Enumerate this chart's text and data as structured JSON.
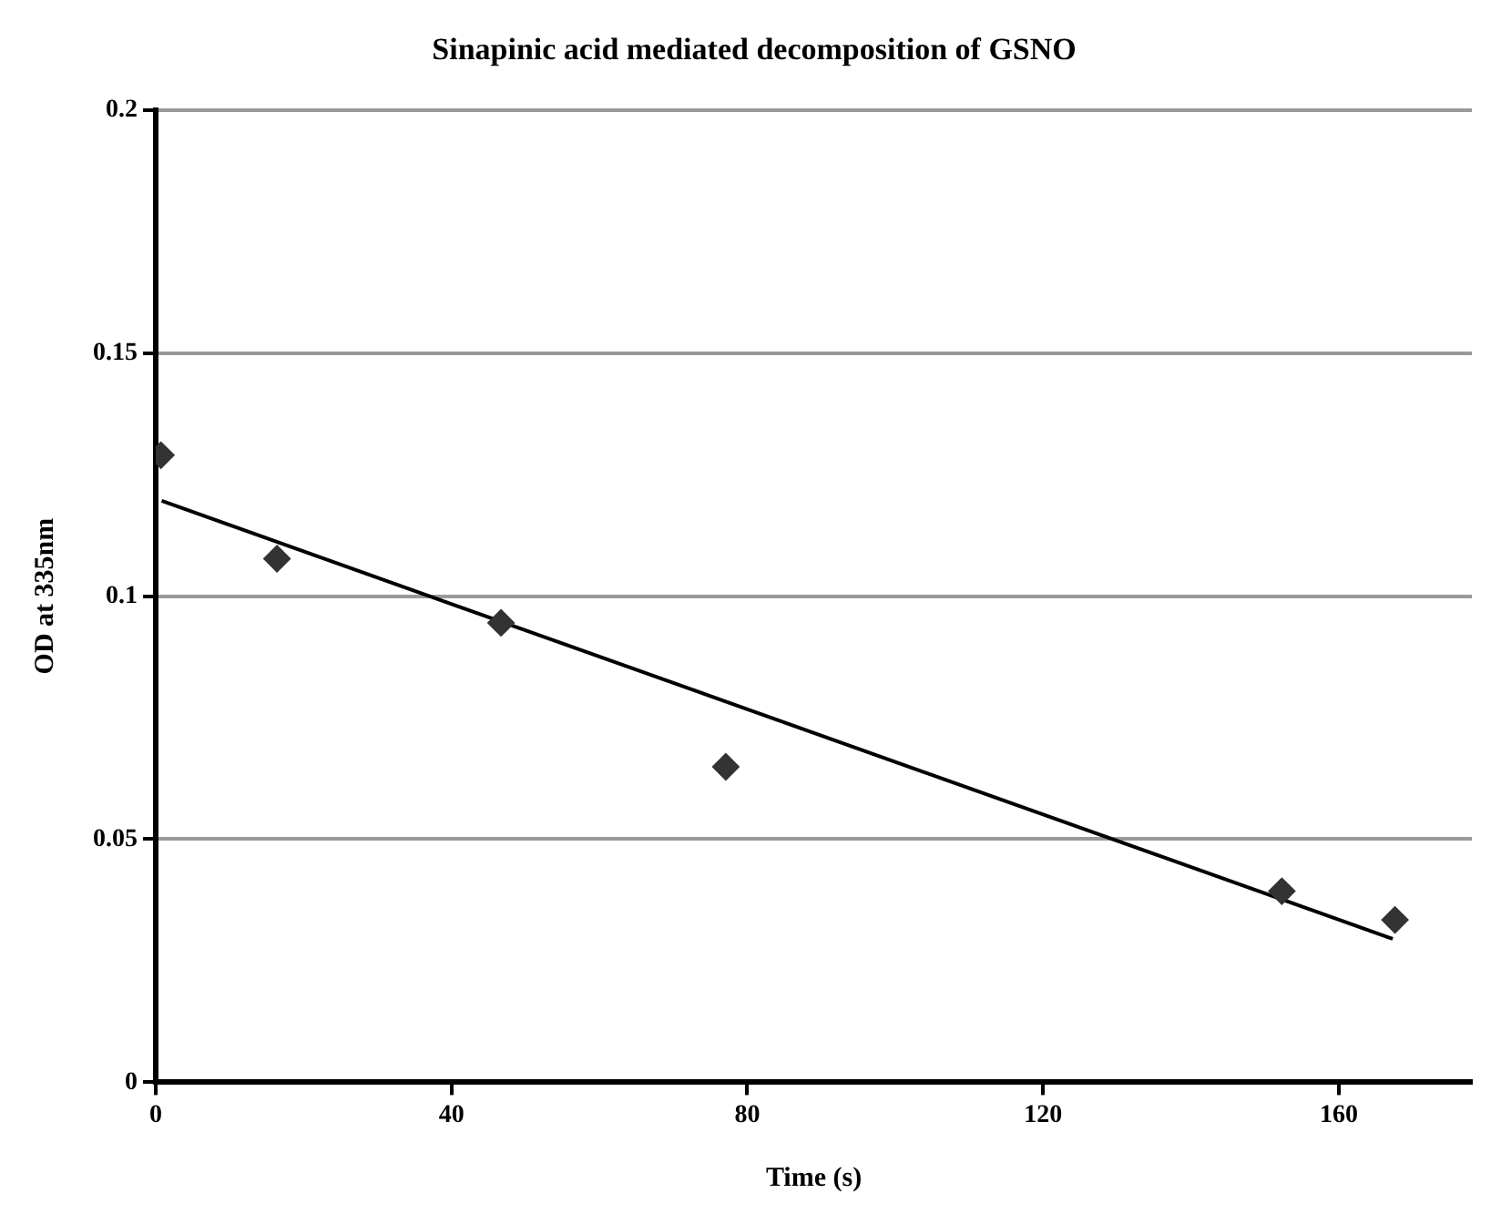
{
  "chart_data": {
    "type": "scatter",
    "title": "Sinapinic acid mediated decomposition of GSNO",
    "xlabel": "Time (s)",
    "ylabel": "OD at 335nm",
    "x": [
      0.7,
      16.4,
      46.7,
      77.1,
      152.3,
      167.6
    ],
    "series": [
      {
        "color": "#333333",
        "marker": "diamond",
        "values": [
          0.129,
          0.1077,
          0.0945,
          0.0649,
          0.0393,
          0.0334
        ]
      },
      {
        "type": "line",
        "color": "#000000",
        "marker": "none",
        "line_style": "solid",
        "x": [
          0.8,
          167.3
        ],
        "values": [
          0.1196,
          0.0295
        ]
      }
    ],
    "xlim": [
      0,
      178
    ],
    "xticks": [
      0,
      40,
      80,
      120,
      160
    ],
    "ylim": [
      0,
      0.2
    ],
    "yticks": [
      0,
      0.05,
      0.1,
      0.15,
      0.2
    ],
    "grid": "y",
    "legend": false
  }
}
